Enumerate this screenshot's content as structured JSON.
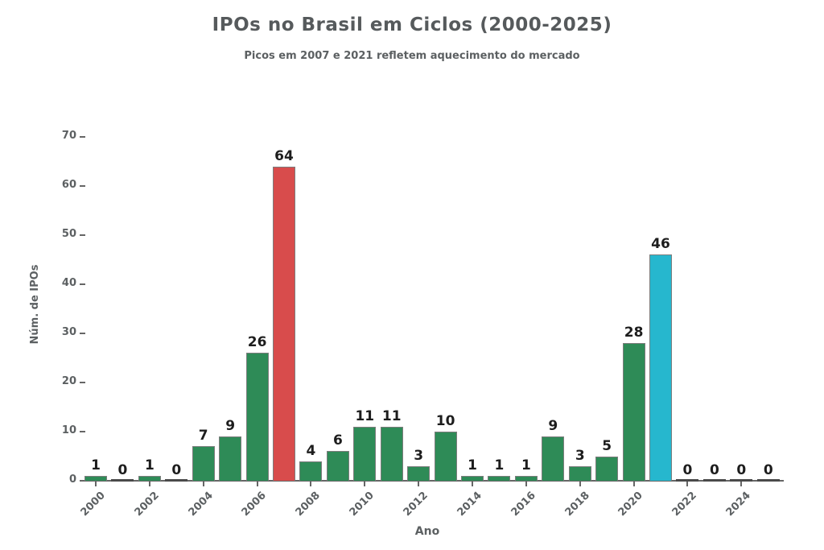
{
  "chart_data": {
    "type": "bar",
    "title": "IPOs no Brasil em Ciclos (2000-2025)",
    "subtitle": "Picos em 2007 e 2021 refletem aquecimento do mercado",
    "xlabel": "Ano",
    "ylabel": "Núm. de IPOs",
    "categories": [
      2000,
      2001,
      2002,
      2003,
      2004,
      2005,
      2006,
      2007,
      2008,
      2009,
      2010,
      2011,
      2012,
      2013,
      2014,
      2015,
      2016,
      2017,
      2018,
      2019,
      2020,
      2021,
      2022,
      2023,
      2024,
      2025
    ],
    "values": [
      1,
      0,
      1,
      0,
      7,
      9,
      26,
      64,
      4,
      6,
      11,
      11,
      3,
      10,
      1,
      1,
      1,
      9,
      3,
      5,
      28,
      46,
      0,
      0,
      0,
      0
    ],
    "bar_value_labels": true,
    "default_color": "#2e8b57",
    "highlight_colors": {
      "2007": "#d84c4c",
      "2021": "#26b7ce"
    },
    "edge_color": "#7d7d7d",
    "axis_color": "#666666",
    "text_color": "#5c6062",
    "value_label_color": "#1d1d1d",
    "ylim": [
      0,
      70
    ],
    "yticks": [
      0,
      10,
      20,
      30,
      40,
      50,
      60,
      70
    ],
    "xtick_years": [
      2000,
      2002,
      2004,
      2006,
      2008,
      2010,
      2012,
      2014,
      2016,
      2018,
      2020,
      2022,
      2024
    ],
    "grid": false,
    "legend": false
  }
}
